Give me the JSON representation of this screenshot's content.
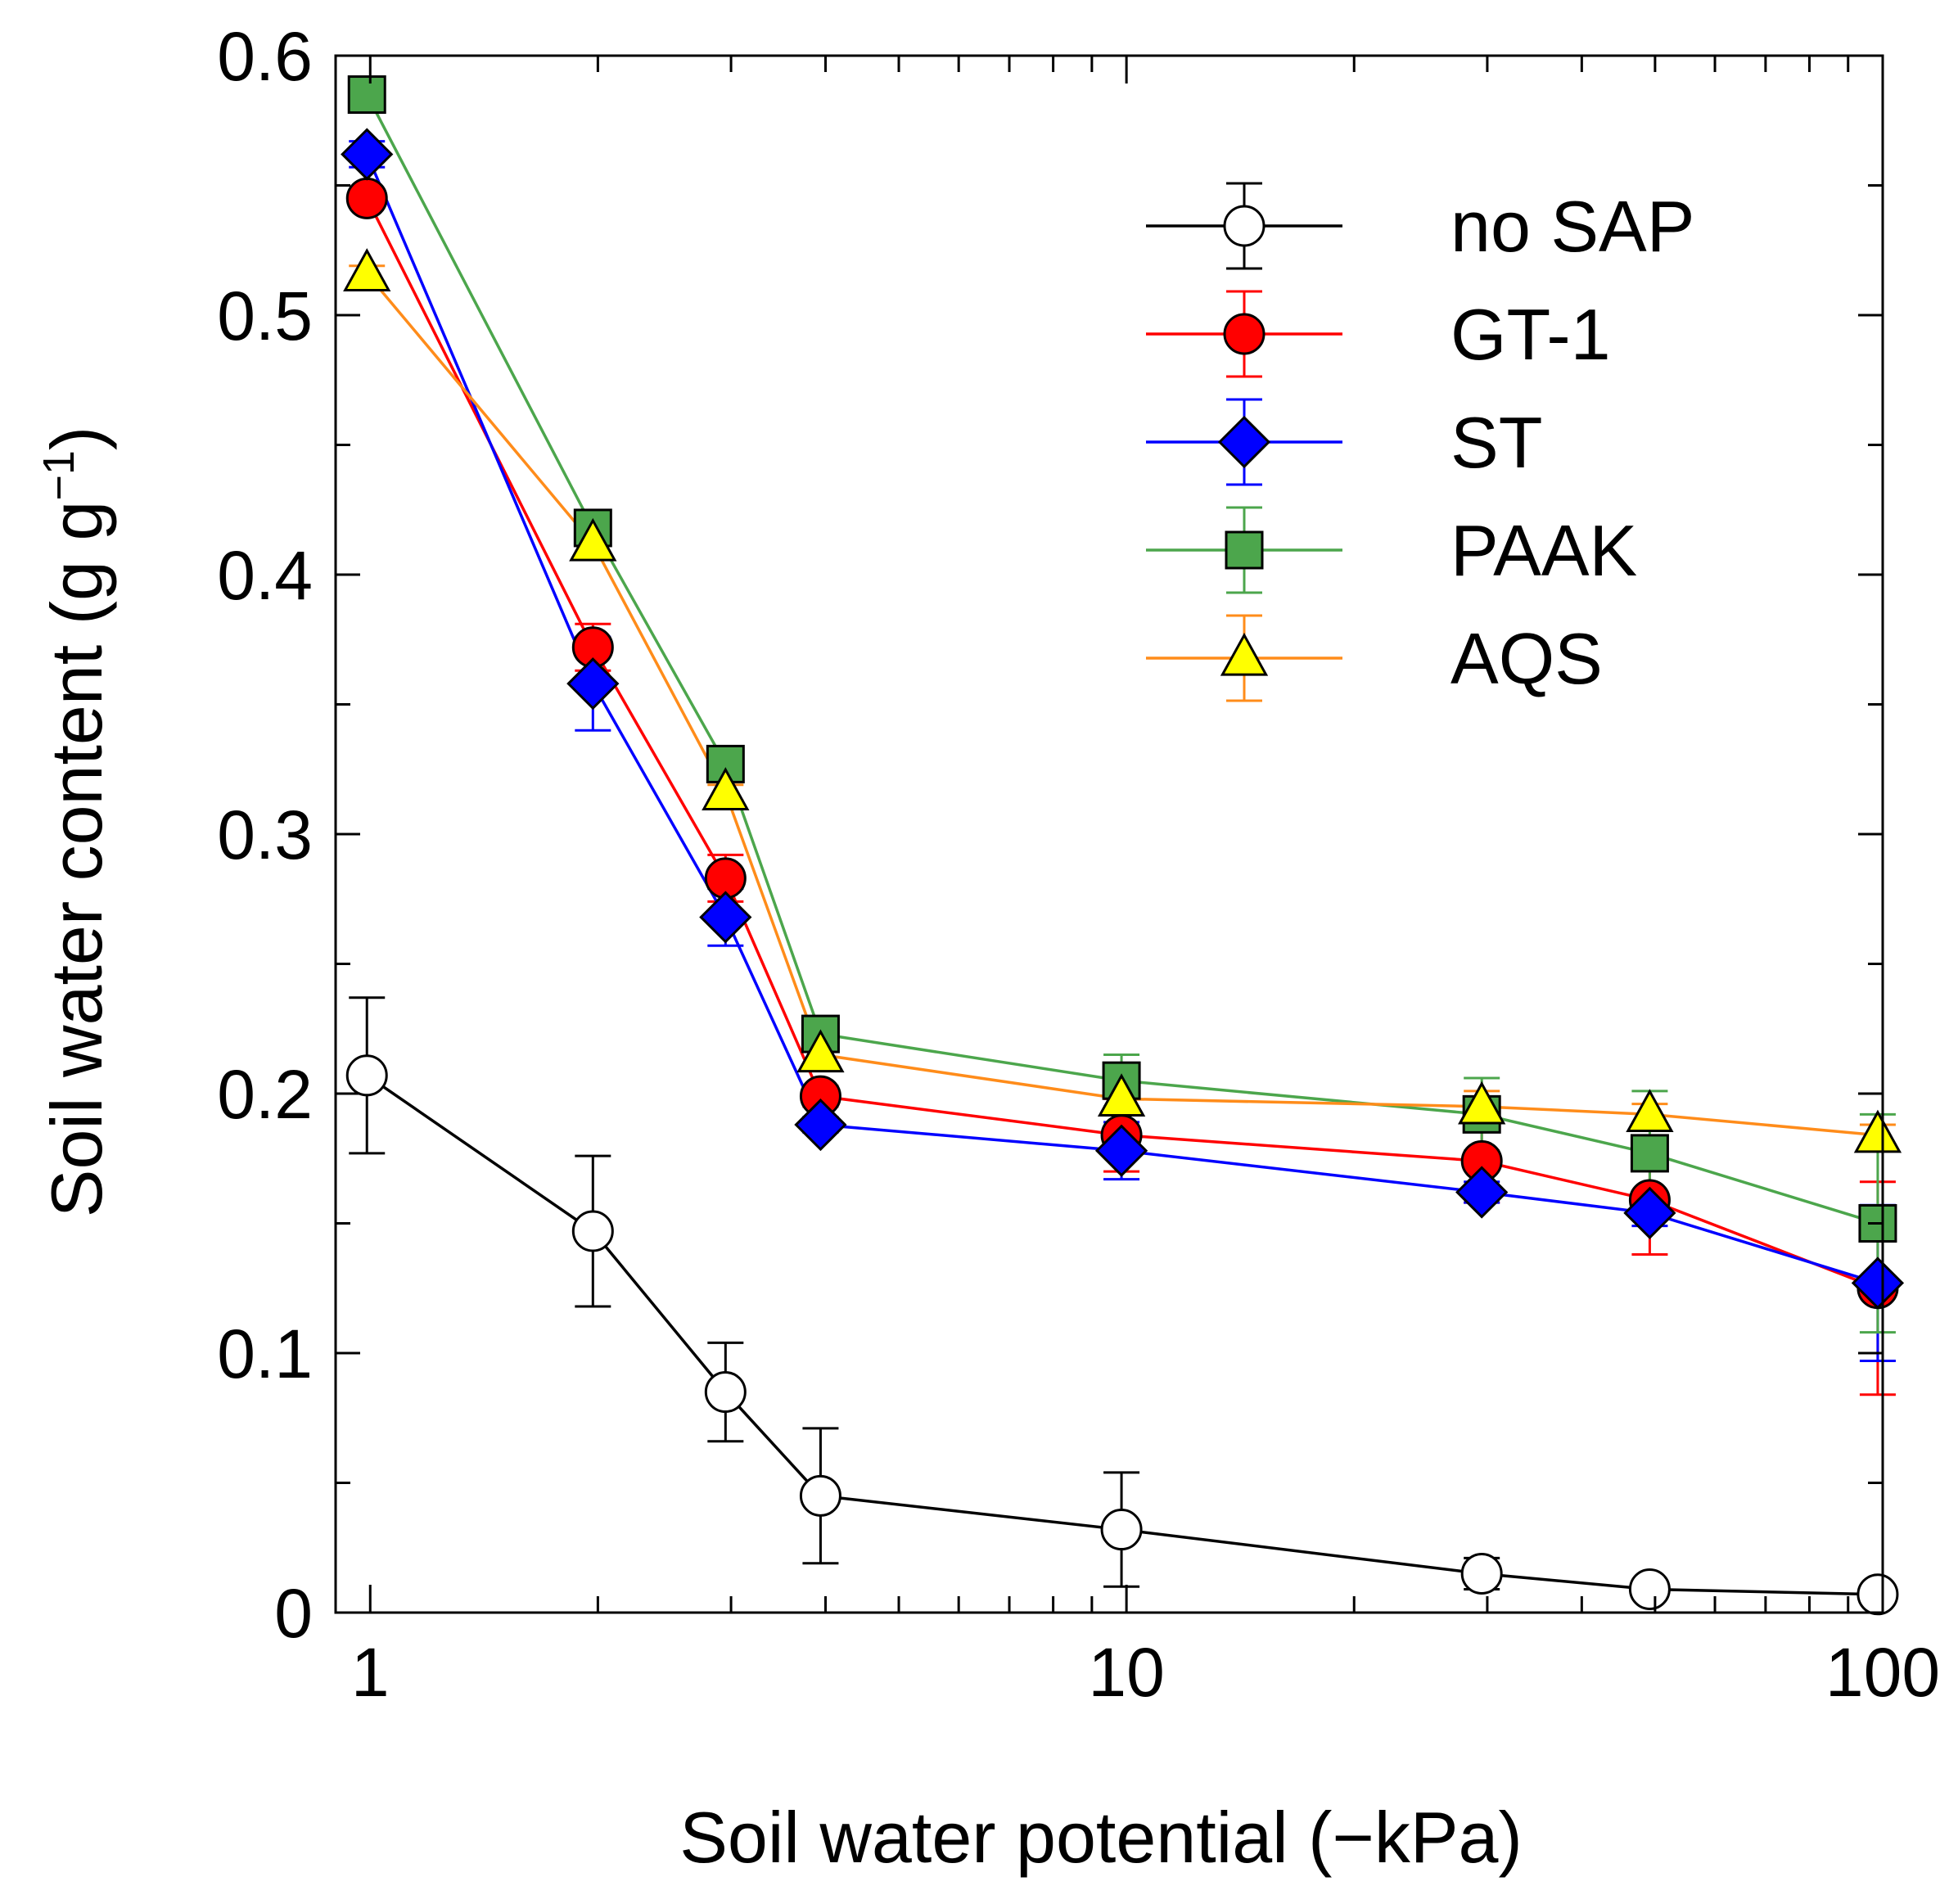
{
  "chart_data": {
    "type": "scatter",
    "title": "",
    "xlabel": "Soil water potential (−kPa)",
    "ylabel": "Soil water content (g g",
    "ylabel_sup": "−1",
    "ylabel_end": ")",
    "xscale": "log",
    "xlim": [
      0.9,
      100
    ],
    "ylim": [
      0,
      0.6
    ],
    "x_ticks": [
      {
        "value": 1,
        "label": "1"
      },
      {
        "value": 10,
        "label": "10"
      },
      {
        "value": 100,
        "label": "100"
      }
    ],
    "y_ticks": [
      {
        "value": 0,
        "label": "0"
      },
      {
        "value": 0.1,
        "label": "0.1"
      },
      {
        "value": 0.2,
        "label": "0.2"
      },
      {
        "value": 0.3,
        "label": "0.3"
      },
      {
        "value": 0.4,
        "label": "0.4"
      },
      {
        "value": 0.5,
        "label": "0.5"
      },
      {
        "value": 0.6,
        "label": "0.6"
      }
    ],
    "legend_position": "top-right",
    "series": [
      {
        "name": "no SAP",
        "marker": "circle",
        "line_color": "#000000",
        "fill_color": "#ffffff",
        "x": [
          0.99,
          1.97,
          2.95,
          3.94,
          9.85,
          29.5,
          49.2,
          98.5
        ],
        "y": [
          0.207,
          0.147,
          0.085,
          0.045,
          0.032,
          0.015,
          0.009,
          0.007
        ],
        "err": [
          0.03,
          0.029,
          0.019,
          0.026,
          0.022,
          0.006,
          0.003,
          0.003
        ]
      },
      {
        "name": "GT-1",
        "marker": "circle",
        "line_color": "#ff0000",
        "fill_color": "#ff0000",
        "x": [
          0.99,
          1.97,
          2.95,
          3.94,
          9.85,
          29.5,
          49.2,
          98.5
        ],
        "y": [
          0.545,
          0.372,
          0.283,
          0.199,
          0.184,
          0.174,
          0.159,
          0.125
        ],
        "err": [
          0.003,
          0.009,
          0.009,
          0.004,
          0.014,
          0.016,
          0.021,
          0.041
        ]
      },
      {
        "name": "ST",
        "marker": "diamond",
        "line_color": "#0000ff",
        "fill_color": "#0000ff",
        "x": [
          0.99,
          1.97,
          2.95,
          3.94,
          9.85,
          29.5,
          49.2,
          98.5
        ],
        "y": [
          0.562,
          0.358,
          0.268,
          0.188,
          0.178,
          0.162,
          0.154,
          0.127
        ],
        "err": [
          0.005,
          0.018,
          0.011,
          0.003,
          0.011,
          0.004,
          0.005,
          0.03
        ]
      },
      {
        "name": "PAAK",
        "marker": "square",
        "line_color": "#4ca64c",
        "fill_color": "#4ca64c",
        "x": [
          0.99,
          1.97,
          2.95,
          3.94,
          9.85,
          29.5,
          49.2,
          98.5
        ],
        "y": [
          0.585,
          0.418,
          0.327,
          0.223,
          0.205,
          0.192,
          0.177,
          0.15
        ],
        "err": [
          0.003,
          0.005,
          0.005,
          0.006,
          0.01,
          0.014,
          0.024,
          0.042
        ]
      },
      {
        "name": "AQS",
        "marker": "triangle",
        "line_color": "#ff8c1a",
        "fill_color": "#ffff00",
        "x": [
          0.99,
          1.97,
          2.95,
          3.94,
          9.85,
          29.5,
          49.2,
          98.5
        ],
        "y": [
          0.516,
          0.412,
          0.316,
          0.215,
          0.198,
          0.195,
          0.192,
          0.184
        ],
        "err": [
          0.003,
          0.005,
          0.003,
          0.003,
          0.005,
          0.006,
          0.004,
          0.004
        ]
      }
    ]
  }
}
